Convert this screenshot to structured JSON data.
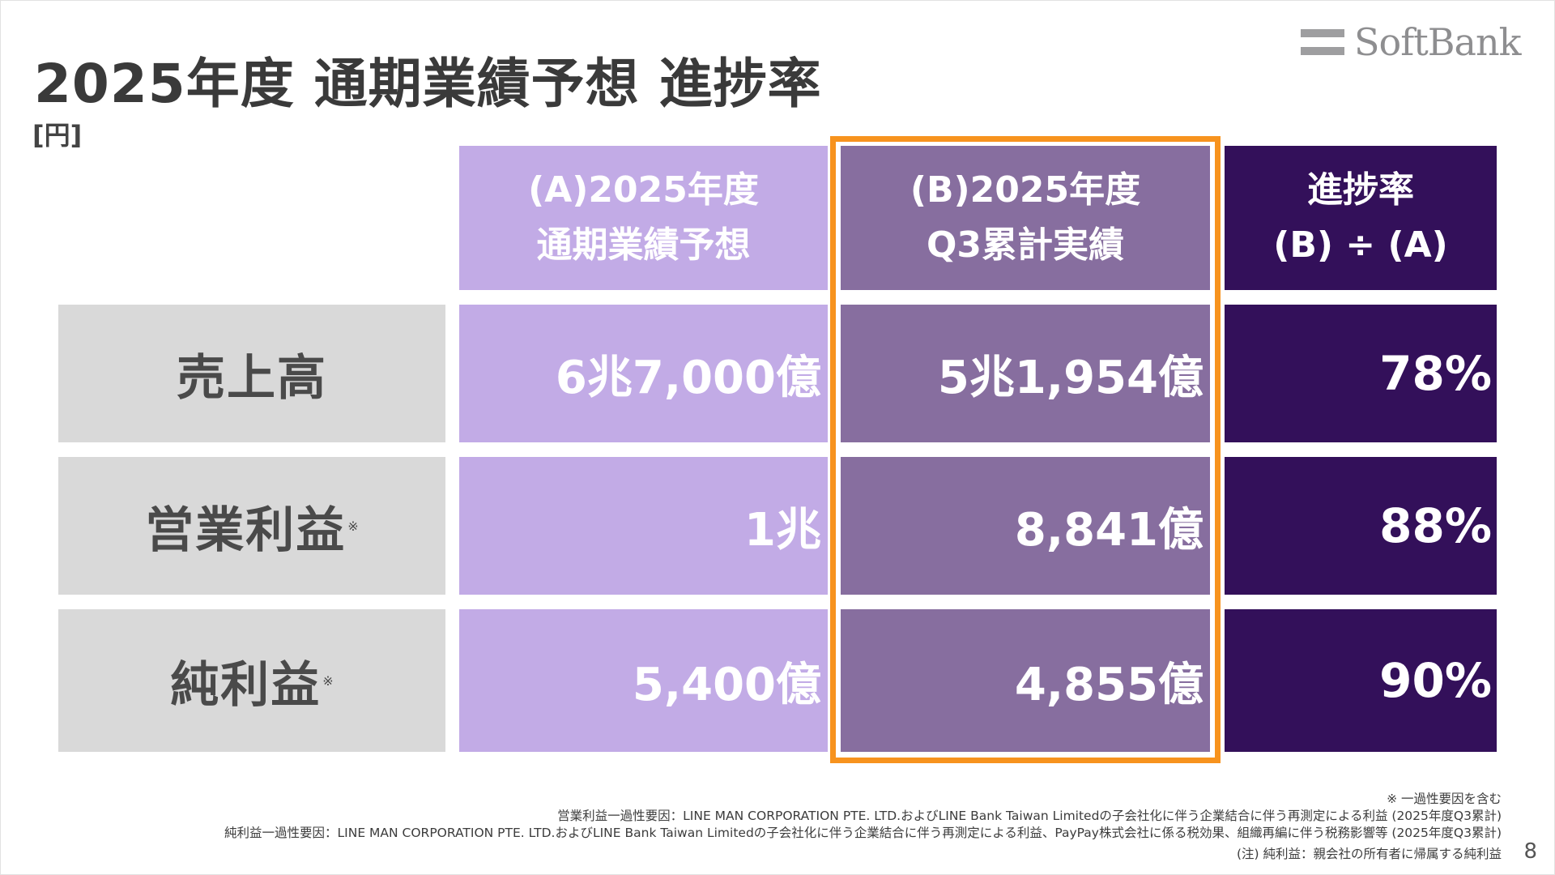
{
  "title": "2025年度 通期業績予想 進捗率",
  "unit": "[円]",
  "logo": {
    "text": "SoftBank"
  },
  "table": {
    "headers": {
      "a": {
        "line1": "(A)2025年度",
        "line2": "通期業績予想"
      },
      "b": {
        "line1": "(B)2025年度",
        "line2": "Q3累計実績"
      },
      "c": {
        "line1": "進捗率",
        "line2": "(B) ÷ (A)"
      }
    },
    "rows": [
      {
        "label": "売上高",
        "note": "",
        "a": "6兆7,000億",
        "b": "5兆1,954億",
        "rate": "78%"
      },
      {
        "label": "営業利益",
        "note": "※",
        "a": "1兆",
        "b": "8,841億",
        "rate": "88%"
      },
      {
        "label": "純利益",
        "note": "※",
        "a": "5,400億",
        "b": "4,855億",
        "rate": "90%"
      }
    ]
  },
  "footnotes": {
    "note_marker": "※ 一過性要因を含む",
    "operating": "営業利益一過性要因：LINE MAN CORPORATION PTE. LTD.およびLINE Bank Taiwan Limitedの子会社化に伴う企業結合に伴う再測定による利益 (2025年度Q3累計)",
    "net": "純利益一過性要因：LINE MAN CORPORATION PTE. LTD.およびLINE Bank Taiwan Limitedの子会社化に伴う企業結合に伴う再測定による利益、PayPay株式会社に係る税効果、組織再編に伴う税務影響等 (2025年度Q3累計)",
    "definition": "(注) 純利益：親会社の所有者に帰属する純利益"
  },
  "page_number": "8",
  "colors": {
    "col_a": "#c2abe6",
    "col_b": "#876e9f",
    "col_c": "#33105a",
    "label_bg": "#d9d9d9",
    "highlight": "#f7931e"
  }
}
